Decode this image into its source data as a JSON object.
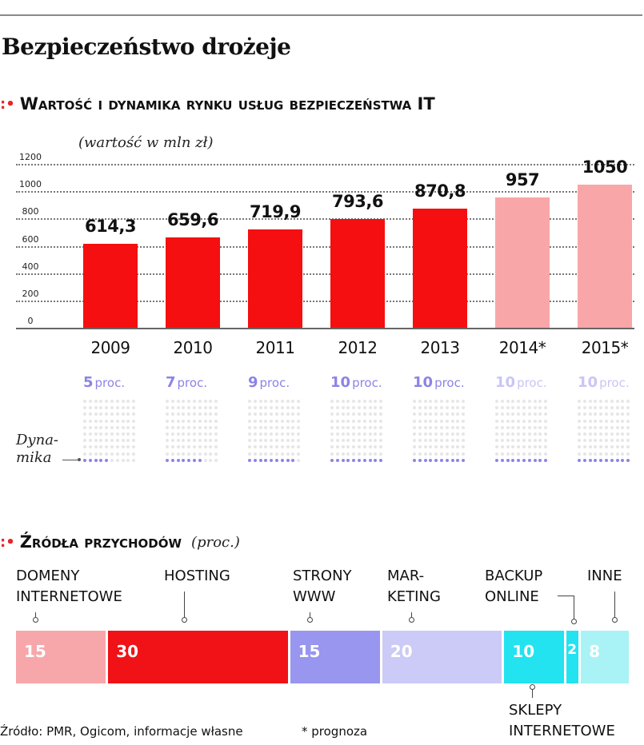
{
  "title": "Bezpieczeństwo drożeje",
  "chart_data": [
    {
      "type": "bar",
      "title": "Wartość i dynamika rynku usług bezpieczeństwa IT",
      "unit_label": "(wartość w mln zł)",
      "categories": [
        "2009",
        "2010",
        "2011",
        "2012",
        "2013",
        "2014*",
        "2015*"
      ],
      "values": [
        614.3,
        659.6,
        719.9,
        793.6,
        870.8,
        957,
        1050
      ],
      "value_labels": [
        "614,3",
        "659,6",
        "719,9",
        "793,6",
        "870,8",
        "957",
        "1050"
      ],
      "forecast": [
        false,
        false,
        false,
        false,
        false,
        true,
        true
      ],
      "ylim": [
        0,
        1200
      ],
      "yticks": [
        "0",
        "200",
        "400",
        "600",
        "800",
        "1000",
        "1200"
      ],
      "grid": true,
      "colors": {
        "actual": "#f50f10",
        "forecast": "#f9a6a8"
      },
      "dynamics": {
        "caption_line1": "Dyna-",
        "caption_line2": "mika",
        "unit": "proc.",
        "values": [
          5,
          7,
          9,
          10,
          10,
          10,
          10
        ],
        "max": 100,
        "colors": {
          "label": "#8c84e6",
          "label_forecast": "#c9c5f4",
          "dot_active": "#8c84e6",
          "dot_inactive": "#e6e6e6"
        }
      }
    },
    {
      "type": "bar",
      "stacked": true,
      "title": "Źródła przychodów",
      "unit_label": "(proc.)",
      "segments": [
        {
          "label_line1": "DOMENY",
          "label_line2": "INTERNETOWE",
          "value": 15,
          "color": "#f7a7aa"
        },
        {
          "label_line1": "HOSTING",
          "label_line2": "",
          "value": 30,
          "color": "#f01216"
        },
        {
          "label_line1": "STRONY",
          "label_line2": "WWW",
          "value": 15,
          "color": "#9896ef"
        },
        {
          "label_line1": "MAR-",
          "label_line2": "KETING",
          "value": 20,
          "color": "#cccaf6"
        },
        {
          "label_line1": "SKLEPY",
          "label_line2": "INTERNETOWE",
          "value": 10,
          "color": "#22e3ef"
        },
        {
          "label_line1": "BACKUP",
          "label_line2": "ONLINE",
          "value": 2,
          "color": "#22e3ef"
        },
        {
          "label_line1": "INNE",
          "label_line2": "",
          "value": 8,
          "color": "#a9f2f5"
        }
      ]
    }
  ],
  "footer": {
    "source": "Źródło: PMR, Ogicom, informacje własne",
    "note": "* prognoza"
  },
  "colors": {
    "accent": "#e8252c"
  }
}
